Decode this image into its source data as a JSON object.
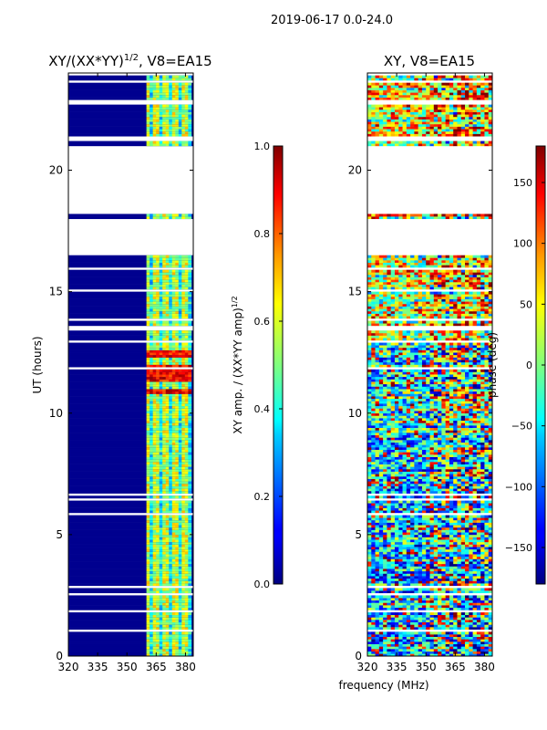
{
  "figure": {
    "suptitle": "2019-06-17 0.0-24.0",
    "shared_xlabel": "frequency (MHz)"
  },
  "chart_data": [
    {
      "type": "heatmap",
      "title_base": "XY/(XX*YY)",
      "title_sup": "1/2",
      "title_suffix": ", V8=EA15",
      "ylabel": "UT (hours)",
      "xlim": [
        320,
        384
      ],
      "ylim": [
        0,
        24
      ],
      "xticks": [
        "320",
        "335",
        "350",
        "365",
        "380"
      ],
      "yticks": [
        "0",
        "5",
        "10",
        "15",
        "20"
      ],
      "colorbar": {
        "label_base": "XY amp. / (XX*YY amp)",
        "label_sup": "1/2",
        "range": [
          0.0,
          1.0
        ],
        "ticks": [
          "0.0",
          "0.2",
          "0.4",
          "0.6",
          "0.8",
          "1.0"
        ],
        "colormap": "jet"
      },
      "data_columns_freq_range": [
        360,
        383
      ],
      "empty_ut_ranges": [
        [
          16.5,
          18.0
        ],
        [
          18.2,
          21.0
        ],
        [
          21.2,
          21.45
        ]
      ]
    },
    {
      "type": "heatmap",
      "title": "XY, V8=EA15",
      "ylabel": "",
      "xlim": [
        320,
        384
      ],
      "ylim": [
        0,
        24
      ],
      "xticks": [
        "320",
        "335",
        "350",
        "365",
        "380"
      ],
      "yticks": [
        "0",
        "5",
        "10",
        "15",
        "20"
      ],
      "colorbar": {
        "label": "phase (deg)",
        "range": [
          -180,
          180
        ],
        "ticks": [
          "−150",
          "−100",
          "−50",
          "0",
          "50",
          "100",
          "150"
        ],
        "tick_values": [
          -150,
          -100,
          -50,
          0,
          50,
          100,
          150
        ],
        "colormap": "jet"
      },
      "empty_ut_ranges": [
        [
          16.5,
          18.0
        ],
        [
          18.2,
          21.0
        ],
        [
          21.2,
          21.45
        ]
      ]
    }
  ]
}
